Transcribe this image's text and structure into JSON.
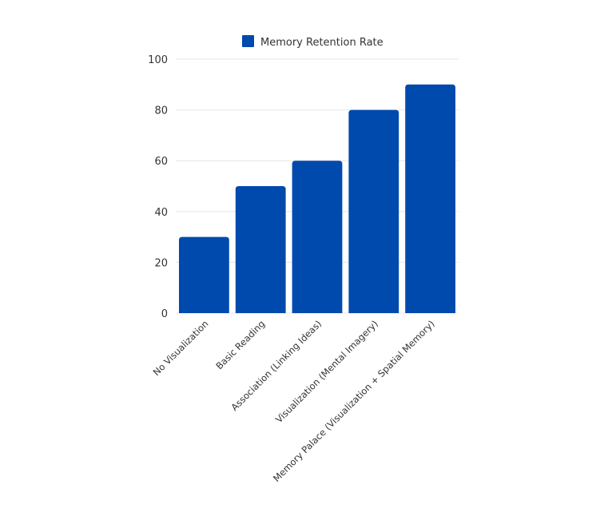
{
  "chart_data": {
    "type": "bar",
    "categories": [
      "No Visualization",
      "Basic Reading",
      "Association (Linking Ideas)",
      "Visualization (Mental Imagery)",
      "Memory Palace (Visualization + Spatial Memory)"
    ],
    "series": [
      {
        "name": "Memory Retention Rate",
        "values": [
          30,
          50,
          60,
          80,
          90
        ]
      }
    ],
    "yticks": [
      "0",
      "20",
      "40",
      "60",
      "80",
      "100"
    ],
    "ylim": [
      0,
      100
    ],
    "grid": true,
    "legend": "top-center",
    "colors": {
      "bar": "#004aad",
      "grid": "#e6e6e6",
      "text": "#333333"
    }
  }
}
